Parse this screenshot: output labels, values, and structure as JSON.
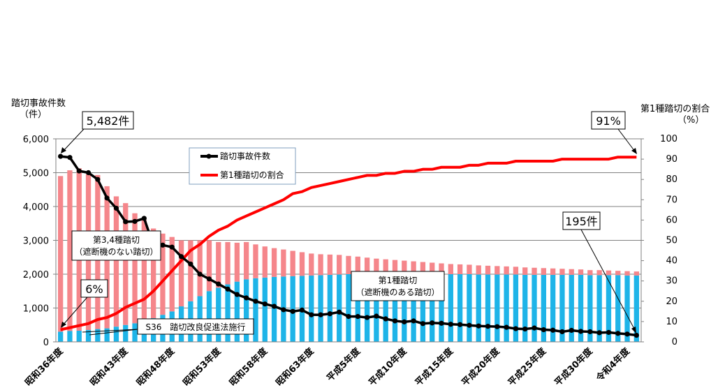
{
  "chart_data": {
    "type": "bar+line",
    "left_axis": {
      "label_line1": "踏切事故件数",
      "label_line2": "（件）",
      "min": 0,
      "max": 6000,
      "ticks": [
        "0",
        "1,000",
        "2,000",
        "3,000",
        "4,000",
        "5,000",
        "6,000"
      ]
    },
    "right_axis": {
      "label_line1": "第1種踏切の割合",
      "label_line2": "（%）",
      "min": 0,
      "max": 100,
      "ticks": [
        "0",
        "10",
        "20",
        "30",
        "40",
        "50",
        "60",
        "70",
        "80",
        "90",
        "100"
      ]
    },
    "x_labels": [
      "昭和36年度",
      "昭和43年度",
      "昭和48年度",
      "昭和53年度",
      "昭和58年度",
      "昭和63年度",
      "平成5年度",
      "平成10年度",
      "平成15年度",
      "平成20年度",
      "平成25年度",
      "平成30年度",
      "令和4年度"
    ],
    "x_label_index": [
      0,
      7,
      12,
      17,
      22,
      27,
      32,
      37,
      42,
      47,
      52,
      57,
      61
    ],
    "series": [
      {
        "name": "踏切事故件数",
        "type": "line",
        "axis": "left",
        "values": [
          5482,
          5450,
          5050,
          5000,
          4800,
          4250,
          3950,
          3550,
          3560,
          3650,
          2850,
          2860,
          2800,
          2520,
          2300,
          2000,
          1860,
          1710,
          1560,
          1400,
          1300,
          1200,
          1120,
          1050,
          950,
          900,
          940,
          800,
          800,
          830,
          880,
          750,
          750,
          720,
          760,
          680,
          620,
          590,
          620,
          540,
          560,
          550,
          520,
          510,
          490,
          470,
          460,
          450,
          430,
          390,
          380,
          410,
          360,
          345,
          300,
          340,
          310,
          300,
          270,
          280,
          250,
          230,
          195
        ]
      },
      {
        "name": "第1種踏切の割合",
        "type": "line",
        "axis": "right",
        "values": [
          6,
          7,
          8,
          9,
          11,
          12,
          14,
          17,
          19,
          21,
          25,
          30,
          35,
          40,
          45,
          48,
          52,
          55,
          57,
          60,
          62,
          64,
          66,
          68,
          70,
          73,
          74,
          76,
          77,
          78,
          79,
          80,
          81,
          82,
          82,
          83,
          83,
          84,
          84,
          85,
          85,
          86,
          86,
          86,
          87,
          87,
          88,
          88,
          88,
          89,
          89,
          89,
          89,
          89,
          90,
          90,
          90,
          90,
          90,
          90,
          91,
          91,
          91
        ]
      },
      {
        "name": "第1種踏切",
        "type": "bar",
        "axis": "left",
        "values": [
          300,
          320,
          330,
          350,
          380,
          400,
          450,
          500,
          550,
          600,
          700,
          800,
          900,
          1050,
          1200,
          1350,
          1500,
          1600,
          1700,
          1780,
          1850,
          1880,
          1900,
          1920,
          1930,
          1940,
          1950,
          1960,
          1970,
          1980,
          1990,
          2000,
          2000,
          2010,
          2000,
          2000,
          2000,
          2000,
          2000,
          2000,
          2000,
          2000,
          2000,
          2000,
          2000,
          1990,
          1990,
          1990,
          1990,
          1990,
          1980,
          1980,
          1980,
          1980,
          1980,
          1980,
          1980,
          1970,
          1970,
          1970,
          1970,
          1960,
          1960
        ]
      },
      {
        "name": "第3,4種踏切",
        "type": "bar",
        "axis": "left",
        "values": [
          4600,
          4750,
          4800,
          4600,
          4550,
          4200,
          3850,
          3600,
          3250,
          3000,
          2650,
          2400,
          2200,
          1950,
          1800,
          1650,
          1500,
          1350,
          1250,
          1150,
          1100,
          1000,
          920,
          850,
          800,
          750,
          700,
          650,
          620,
          600,
          580,
          540,
          520,
          480,
          460,
          440,
          420,
          400,
          380,
          360,
          340,
          320,
          300,
          290,
          280,
          270,
          260,
          250,
          240,
          230,
          220,
          210,
          200,
          190,
          180,
          170,
          160,
          150,
          150,
          140,
          130,
          130,
          120
        ]
      }
    ],
    "callouts": {
      "start_count": "5,482件",
      "start_pct": "6%",
      "end_pct": "91%",
      "end_count": "195件",
      "type34_line1": "第3,4種踏切",
      "type34_line2": "（遮断機のない踏切）",
      "type1_line1": "第1種踏切",
      "type1_line2": "（遮断機のある踏切）",
      "law": "S36　踏切改良促進法施行"
    },
    "legend_placement": "top-center",
    "colors": {
      "type1_bar": "#1EB4E8",
      "type34_bar": "#F5868B",
      "count_line": "#000000",
      "ratio_line": "#FF0000",
      "grid": "#808080"
    }
  }
}
